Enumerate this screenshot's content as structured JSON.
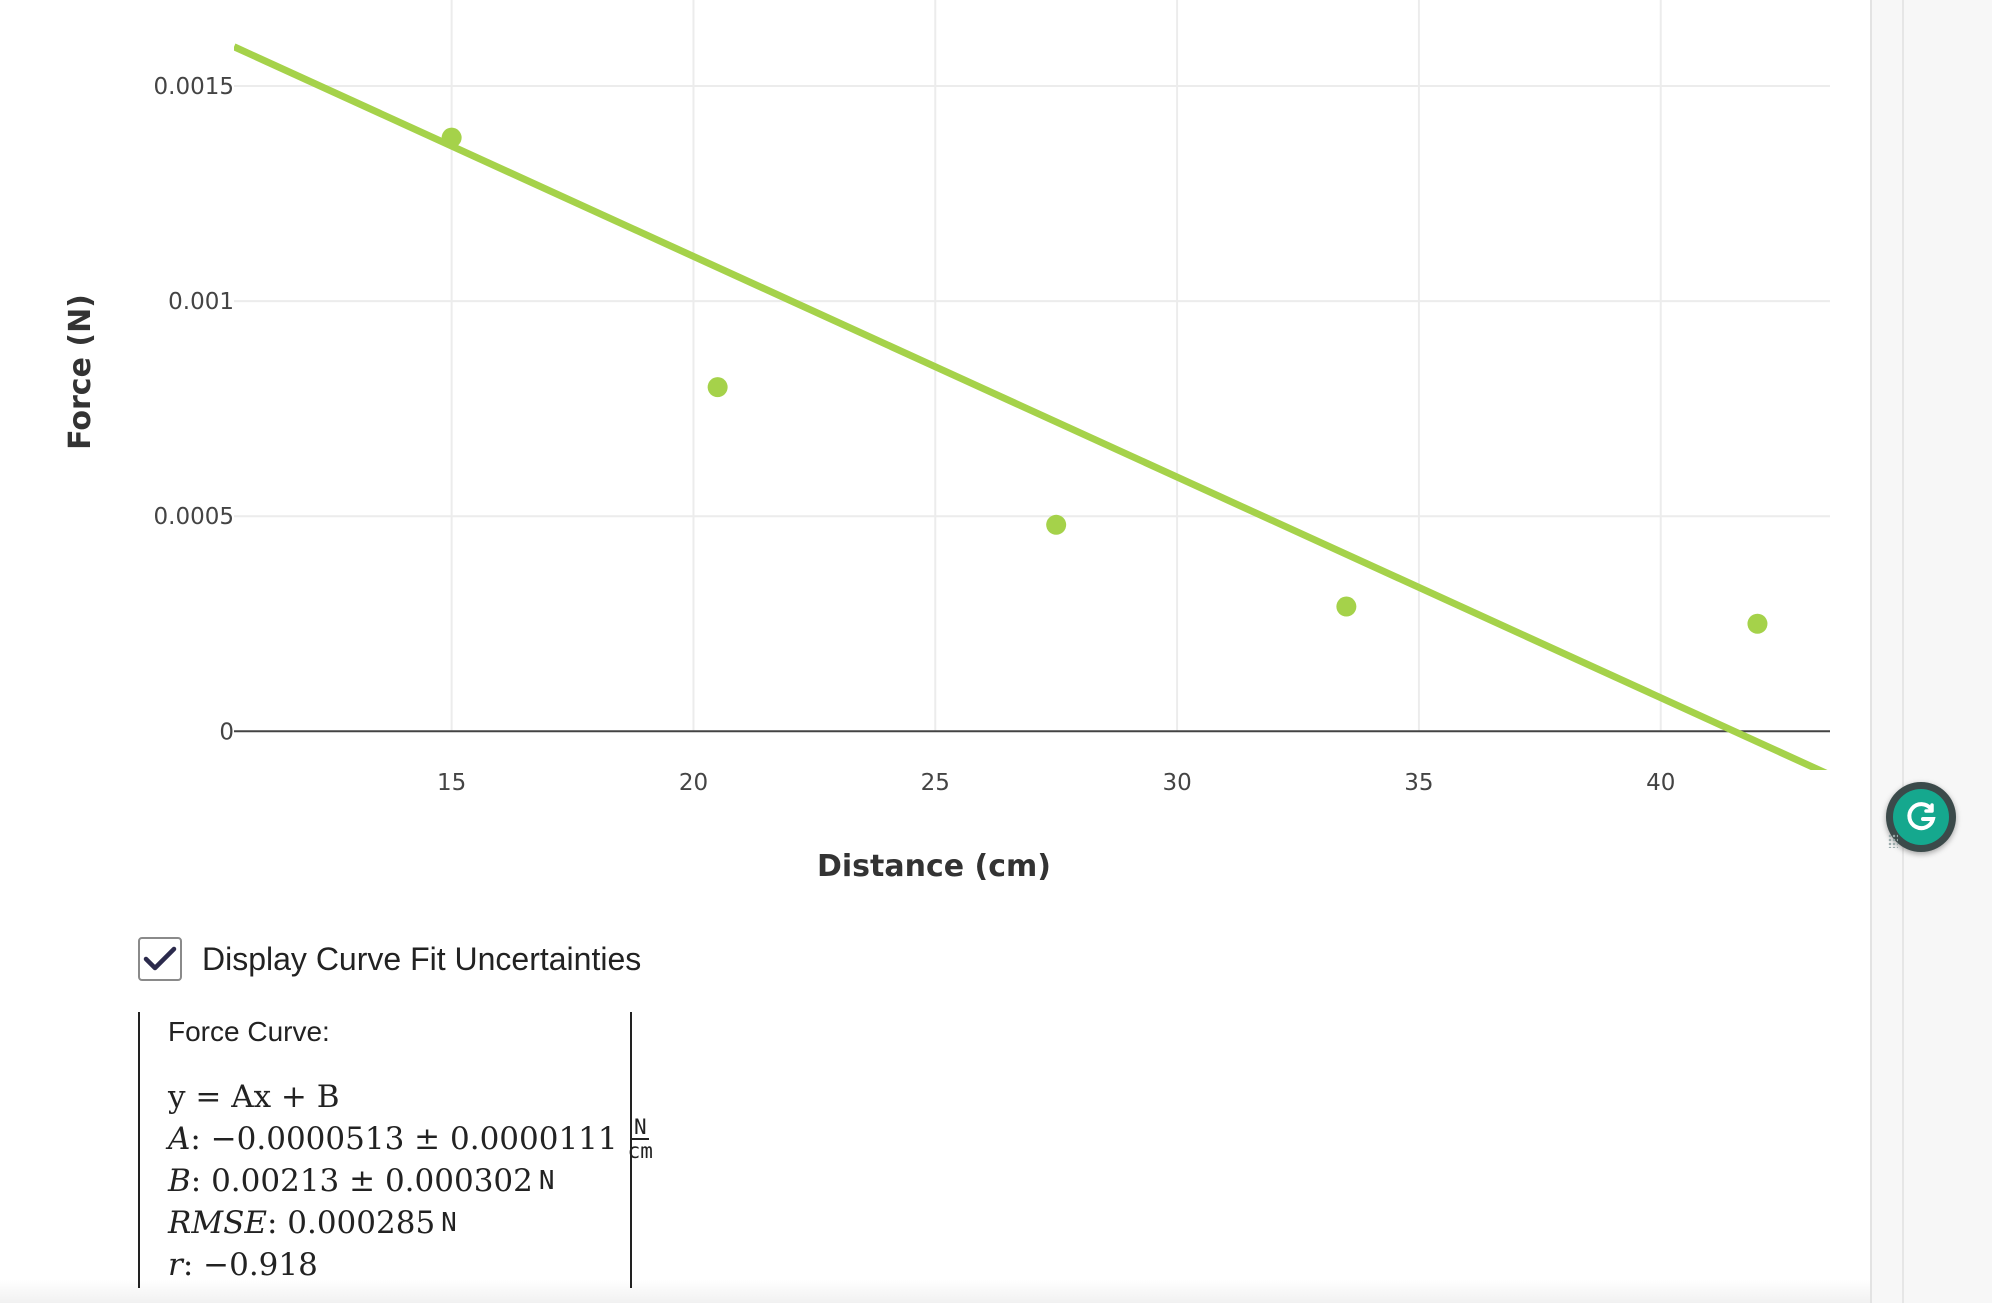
{
  "chart_data": {
    "type": "scatter",
    "xlabel": "Distance (cm)",
    "ylabel": "Force (N)",
    "xlim": [
      10.5,
      43.5
    ],
    "ylim": [
      -9e-05,
      0.0017
    ],
    "x_ticks": [
      15,
      20,
      25,
      30,
      35,
      40
    ],
    "x_tick_labels": [
      "15",
      "20",
      "25",
      "30",
      "35",
      "40"
    ],
    "y_ticks": [
      0,
      0.0005,
      0.001,
      0.0015
    ],
    "y_tick_labels": [
      "0",
      "0.0005",
      "0.001",
      "0.0015"
    ],
    "grid": true,
    "series": [
      {
        "kind": "points",
        "color": "#a5d24a",
        "points": [
          {
            "x": 15.0,
            "y": 0.00138
          },
          {
            "x": 20.5,
            "y": 0.0008
          },
          {
            "x": 27.5,
            "y": 0.00048
          },
          {
            "x": 33.5,
            "y": 0.00029
          },
          {
            "x": 42.0,
            "y": 0.00025
          }
        ]
      },
      {
        "kind": "fit-line",
        "color": "#a5d24a",
        "slope": -5.13e-05,
        "intercept": 0.00213,
        "x_range": [
          10.5,
          43.5
        ]
      }
    ]
  },
  "options": {
    "uncertainty_label": "Display Curve Fit Uncertainties",
    "uncertainty_checked": true
  },
  "fit": {
    "title": "Force Curve:",
    "equation": "y = Ax + B",
    "a_label": "A",
    "a_value": ": −0.0000513 ± 0.0000111",
    "a_unit_num": "N",
    "a_unit_den": "cm",
    "b_label": "B",
    "b_value": ": 0.00213 ± 0.000302",
    "b_unit": "N",
    "rmse_label": "RMSE",
    "rmse_value": ": 0.000285",
    "rmse_unit": "N",
    "r_label": "r",
    "r_value": ": −0.918"
  },
  "colors": {
    "accent": "#a5d24a",
    "checkmark": "#2b2a4c",
    "grammarly": "#15a88e"
  },
  "icons": {
    "checkbox": "checkmark-icon",
    "extension": "grammarly-icon"
  }
}
